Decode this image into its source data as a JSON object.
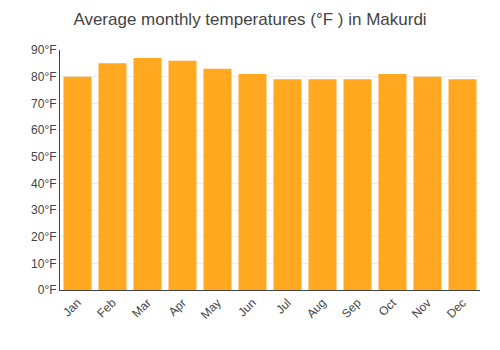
{
  "chart_data": {
    "type": "bar",
    "title": "Average monthly temperatures (°F ) in Makurdi",
    "categories": [
      "Jan",
      "Feb",
      "Mar",
      "Apr",
      "May",
      "Jun",
      "Jul",
      "Aug",
      "Sep",
      "Oct",
      "Nov",
      "Dec"
    ],
    "values": [
      80,
      85,
      87,
      86,
      83,
      81,
      79,
      79,
      79,
      81,
      80,
      79
    ],
    "color": "#FFA820",
    "ylim": [
      0,
      90
    ],
    "yticks": [
      {
        "value": 0,
        "label": "0°F"
      },
      {
        "value": 10,
        "label": "10°F"
      },
      {
        "value": 20,
        "label": "20°F"
      },
      {
        "value": 30,
        "label": "30°F"
      },
      {
        "value": 40,
        "label": "40°F"
      },
      {
        "value": 50,
        "label": "50°F"
      },
      {
        "value": 60,
        "label": "60°F"
      },
      {
        "value": 70,
        "label": "70°F"
      },
      {
        "value": 80,
        "label": "80°F"
      },
      {
        "value": 90,
        "label": "90°F"
      }
    ],
    "grid": true
  }
}
